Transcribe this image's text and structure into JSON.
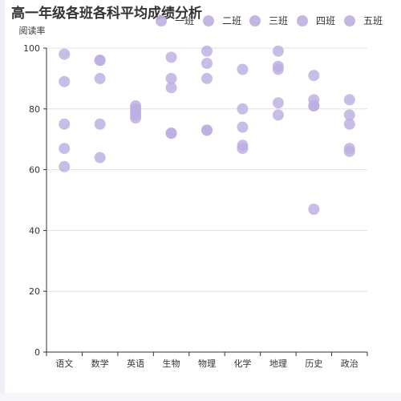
{
  "chart_data": {
    "type": "scatter",
    "title": "高一年级各班各科平均成绩分析",
    "ylabel": "阅读率",
    "xlabel": "",
    "categories": [
      "语文",
      "数学",
      "英语",
      "生物",
      "物理",
      "化学",
      "地理",
      "历史",
      "政治"
    ],
    "ylim": [
      0,
      100
    ],
    "yticks": [
      0,
      20,
      40,
      60,
      80,
      100
    ],
    "grid": "horizontal",
    "legend_position": "top-right",
    "marker_color": "#bcaee0",
    "series": [
      {
        "name": "一班",
        "values": [
          98,
          96,
          81,
          97,
          99,
          93,
          99,
          91,
          83
        ]
      },
      {
        "name": "二班",
        "values": [
          89,
          90,
          79,
          90,
          95,
          80,
          94,
          83,
          78
        ]
      },
      {
        "name": "三班",
        "values": [
          75,
          75,
          80,
          87,
          90,
          74,
          93,
          81,
          75
        ]
      },
      {
        "name": "四班",
        "values": [
          67,
          96,
          78,
          72,
          73,
          68,
          82,
          81,
          67
        ]
      },
      {
        "name": "五班",
        "values": [
          61,
          64,
          77,
          72,
          73,
          67,
          78,
          47,
          66
        ]
      }
    ]
  }
}
